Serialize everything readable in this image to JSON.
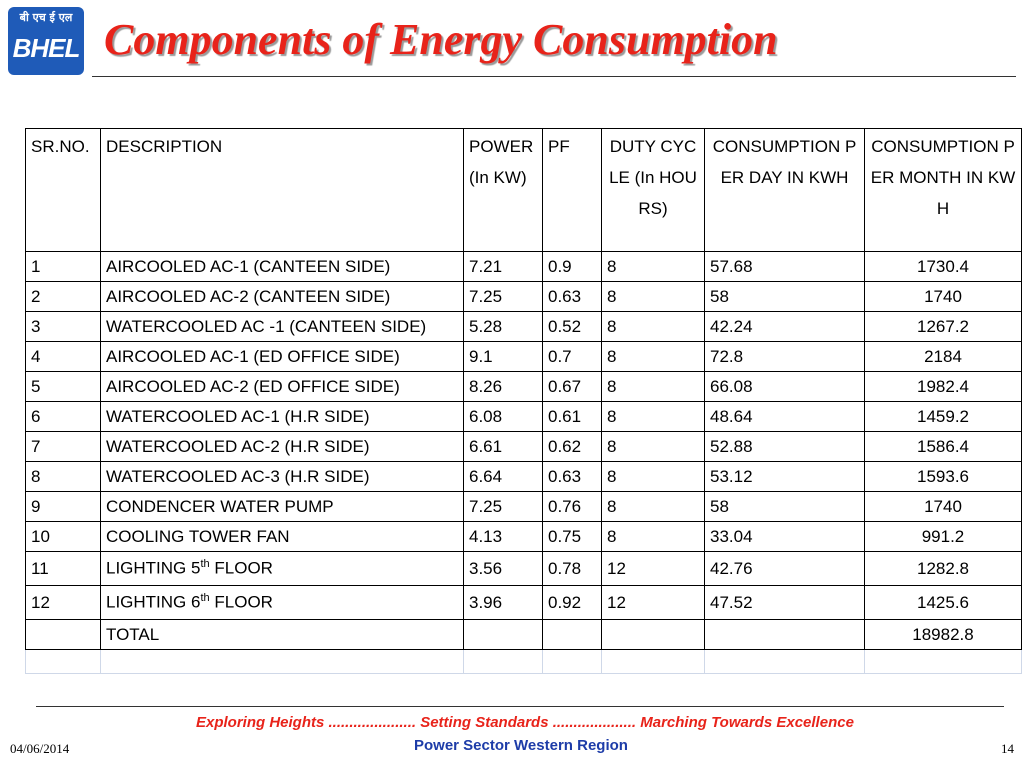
{
  "logo": {
    "hindi_text": "बी एच ई एल",
    "brand_text": "BHEL",
    "color": "#1f5bb8"
  },
  "title": "Components of Energy Consumption",
  "table": {
    "headers": {
      "sr": "SR.NO.",
      "description": "DESCRIPTION",
      "power": "POWER (In KW)",
      "pf": "PF",
      "duty": "DUTY CYCLE (In HOURS)",
      "per_day": "CONSUMPTION PER DAY IN KWH",
      "per_month": "CONSUMPTION PER MONTH IN KWH"
    },
    "rows": [
      {
        "sr": "1",
        "desc": "AIRCOOLED AC-1  (CANTEEN SIDE)",
        "power": "7.21",
        "pf": "0.9",
        "duty": "8",
        "day": "57.68",
        "month": "1730.4"
      },
      {
        "sr": "2",
        "desc": "AIRCOOLED AC-2  (CANTEEN SIDE)",
        "power": "7.25",
        "pf": "0.63",
        "duty": "8",
        "day": "58",
        "month": "1740"
      },
      {
        "sr": "3",
        "desc": "WATERCOOLED AC -1  (CANTEEN SIDE)",
        "power": "5.28",
        "pf": "0.52",
        "duty": "8",
        "day": "42.24",
        "month": "1267.2"
      },
      {
        "sr": "4",
        "desc": "AIRCOOLED AC-1 (ED OFFICE SIDE)",
        "power": "9.1",
        "pf": "0.7",
        "duty": "8",
        "day": "72.8",
        "month": "2184"
      },
      {
        "sr": "5",
        "desc": "AIRCOOLED AC-2 (ED OFFICE SIDE)",
        "power": "8.26",
        "pf": "0.67",
        "duty": "8",
        "day": "66.08",
        "month": "1982.4"
      },
      {
        "sr": "6",
        "desc": "WATERCOOLED AC-1  (H.R  SIDE)",
        "power": "6.08",
        "pf": "0.61",
        "duty": "8",
        "day": "48.64",
        "month": "1459.2"
      },
      {
        "sr": "7",
        "desc": "WATERCOOLED AC-2 (H.R  SIDE)",
        "power": "6.61",
        "pf": "0.62",
        "duty": "8",
        "day": "52.88",
        "month": "1586.4"
      },
      {
        "sr": "8",
        "desc": "WATERCOOLED AC-3  (H.R  SIDE)",
        "power": "6.64",
        "pf": "0.63",
        "duty": "8",
        "day": "53.12",
        "month": "1593.6"
      },
      {
        "sr": "9",
        "desc": "CONDENCER WATER PUMP",
        "power": "7.25",
        "pf": "0.76",
        "duty": "8",
        "day": "58",
        "month": "1740"
      },
      {
        "sr": "10",
        "desc": "COOLING TOWER FAN",
        "power": "4.13",
        "pf": "0.75",
        "duty": "8",
        "day": "33.04",
        "month": "991.2"
      },
      {
        "sr": "11",
        "desc_pre": "LIGHTING  5",
        "desc_sup": "th",
        "desc_post": " FLOOR",
        "power": "3.56",
        "pf": "0.78",
        "duty": "12",
        "day": "42.76",
        "month": "1282.8"
      },
      {
        "sr": "12",
        "desc_pre": "LIGHTING  6",
        "desc_sup": "th",
        "desc_post": " FLOOR",
        "power": "3.96",
        "pf": "0.92",
        "duty": "12",
        "day": "47.52",
        "month": "1425.6"
      }
    ],
    "total": {
      "label": "TOTAL",
      "value": "18982.8"
    }
  },
  "footer": {
    "tagline": "Exploring Heights .....................  Setting Standards  .................... Marching Towards Excellence",
    "region": "Power Sector Western Region",
    "date": "04/06/2014",
    "page_number": "14"
  },
  "colors": {
    "title_red": "#e8231a",
    "region_blue": "#1d3ca8"
  }
}
